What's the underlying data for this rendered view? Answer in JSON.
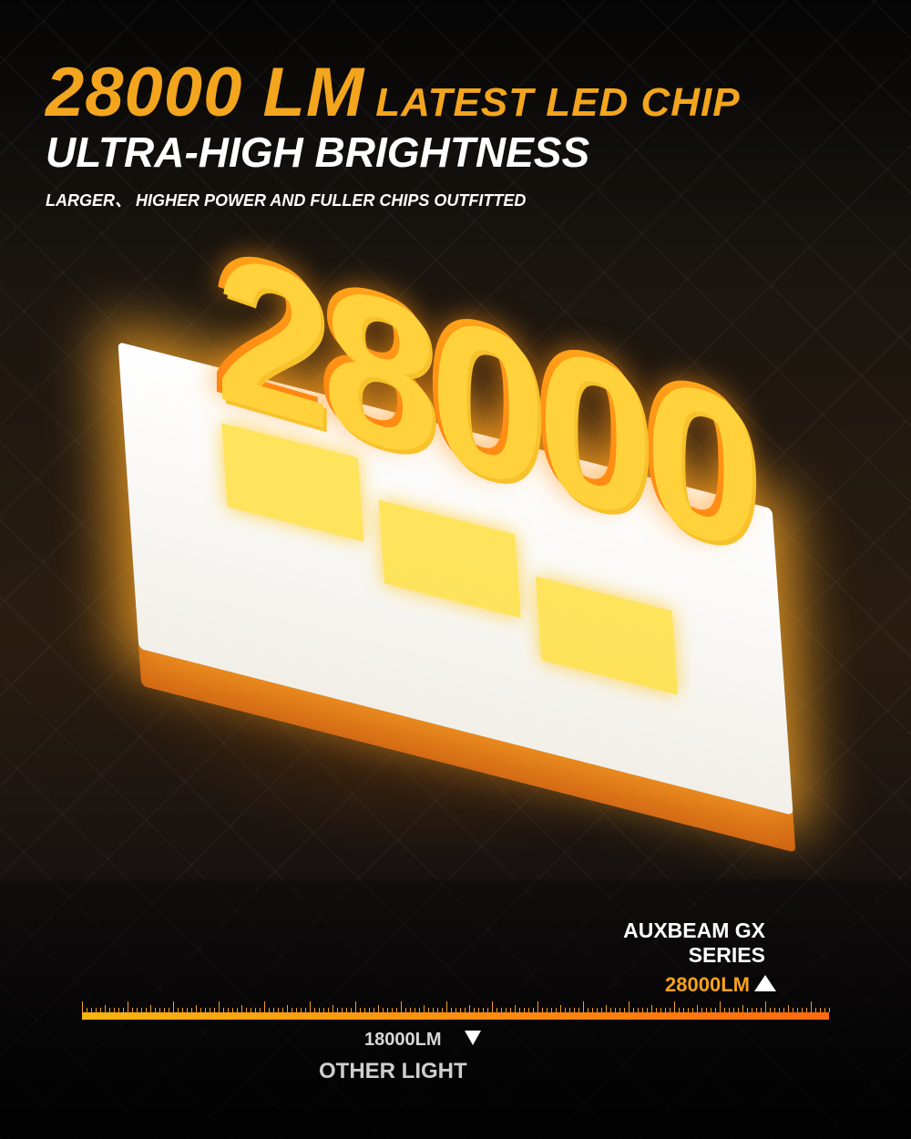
{
  "headline": {
    "lumen": "28000 LM",
    "chip": "LATEST LED CHIP"
  },
  "subheadline": "ULTRA-HIGH BRIGHTNESS",
  "tagline": "LARGER、 HIGHER POWER AND FULLER CHIPS OUTFITTED",
  "hero_number": "28000",
  "comparison": {
    "brand_line1": "AUXBEAM GX",
    "brand_line2": "SERIES",
    "brand_value": "28000LM",
    "other_value": "18000LM",
    "other_label": "OTHER LIGHT",
    "icons": {
      "up": "triangle-up-icon",
      "down": "triangle-down-icon"
    }
  },
  "colors": {
    "accent": "#f3a51d",
    "bar_start": "#f8b414",
    "bar_end": "#ff6a10"
  }
}
